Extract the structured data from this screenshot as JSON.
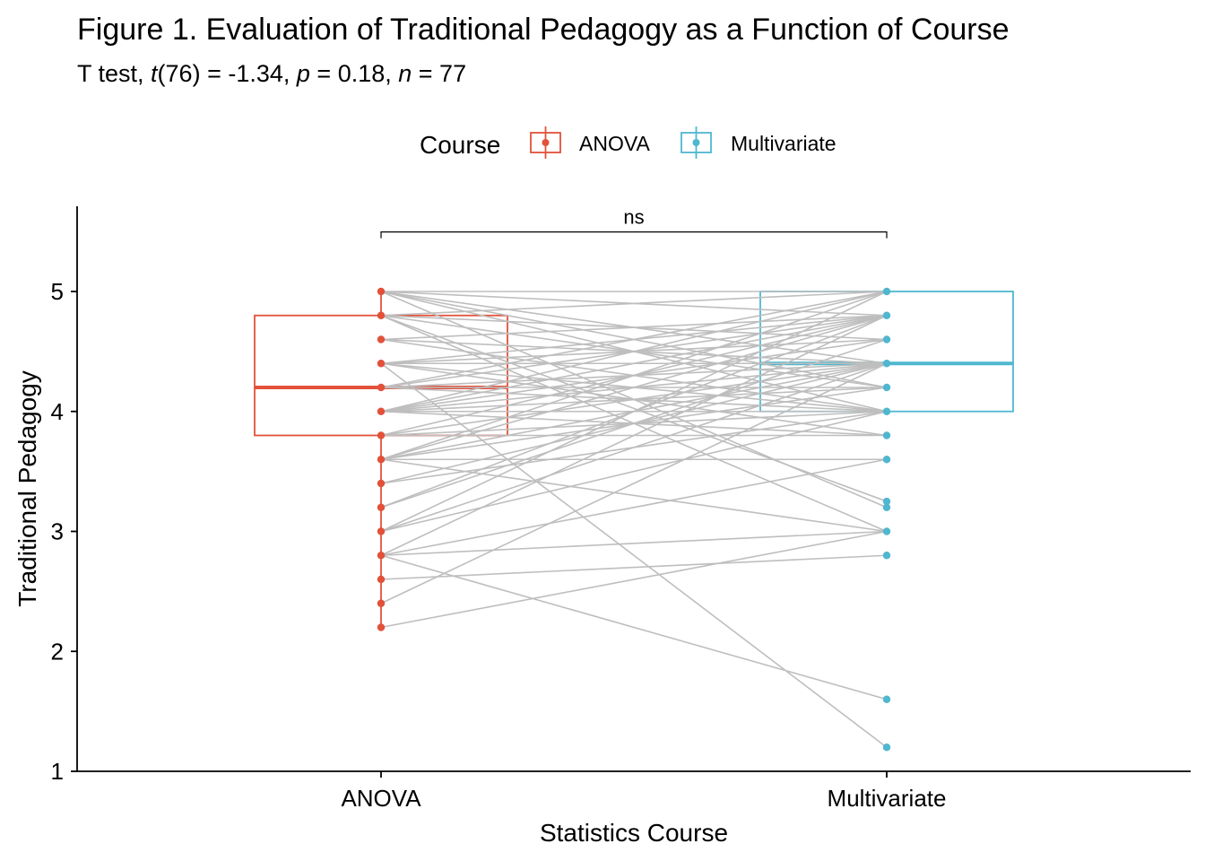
{
  "title": "Figure 1. Evaluation of Traditional Pedagogy as a Function of Course",
  "subtitle": {
    "prefix": "T test, ",
    "t_symbol": "t",
    "t_value": "(76) = -1.34, ",
    "p_symbol": "p",
    "p_value": " = 0.18, ",
    "n_symbol": "n",
    "n_value": " = 77"
  },
  "legend": {
    "title": "Course",
    "placement": "top",
    "items": [
      {
        "label": "ANOVA",
        "color": "#E2513A"
      },
      {
        "label": "Multivariate",
        "color": "#4FB7CF"
      }
    ]
  },
  "chart_data": {
    "type": "boxplot-paired",
    "xlabel": "Statistics Course",
    "ylabel": "Traditional Pedagogy",
    "ylim": [
      1,
      5.8
    ],
    "y_ticks": [
      1,
      2,
      3,
      4,
      5
    ],
    "y_tick_labels": [
      "1",
      "2",
      "3",
      "4",
      "5"
    ],
    "categories": [
      "ANOVA",
      "Multivariate"
    ],
    "grid": false,
    "colors": {
      "ANOVA": "#E2513A",
      "Multivariate": "#4FB7CF",
      "paired_line": "#BEBEBE"
    },
    "boxes": [
      {
        "group": "ANOVA",
        "min": 2.2,
        "q1": 3.8,
        "median": 4.2,
        "q3": 4.8,
        "max": 5.0
      },
      {
        "group": "Multivariate",
        "min": 4.0,
        "q1": 4.0,
        "median": 4.4,
        "q3": 5.0,
        "max": 5.0
      }
    ],
    "points": {
      "ANOVA": [
        2.2,
        2.4,
        2.6,
        2.8,
        3.0,
        3.2,
        3.4,
        3.6,
        3.8,
        4.0,
        4.2,
        4.4,
        4.6,
        4.8,
        5.0
      ],
      "Multivariate": [
        1.2,
        1.6,
        2.8,
        3.0,
        3.2,
        3.25,
        3.6,
        3.8,
        4.0,
        4.2,
        4.4,
        4.6,
        4.8,
        5.0
      ]
    },
    "paired_lines": [
      [
        5.0,
        5.0
      ],
      [
        5.0,
        4.8
      ],
      [
        5.0,
        4.4
      ],
      [
        5.0,
        4.2
      ],
      [
        5.0,
        3.2
      ],
      [
        5.0,
        4.0
      ],
      [
        4.8,
        5.0
      ],
      [
        4.8,
        4.6
      ],
      [
        4.8,
        4.2
      ],
      [
        4.8,
        3.0
      ],
      [
        4.8,
        3.25
      ],
      [
        4.6,
        4.8
      ],
      [
        4.6,
        4.4
      ],
      [
        4.6,
        4.0
      ],
      [
        4.4,
        4.6
      ],
      [
        4.4,
        4.8
      ],
      [
        4.4,
        4.0
      ],
      [
        4.4,
        4.4
      ],
      [
        4.4,
        3.8
      ],
      [
        4.4,
        1.2
      ],
      [
        4.2,
        4.8
      ],
      [
        4.2,
        4.2
      ],
      [
        4.2,
        4.0
      ],
      [
        4.2,
        4.4
      ],
      [
        4.2,
        5.0
      ],
      [
        4.0,
        4.0
      ],
      [
        4.0,
        4.8
      ],
      [
        4.0,
        4.4
      ],
      [
        4.0,
        3.8
      ],
      [
        4.0,
        4.6
      ],
      [
        4.0,
        5.0
      ],
      [
        4.0,
        4.2
      ],
      [
        3.8,
        4.4
      ],
      [
        3.8,
        4.0
      ],
      [
        3.8,
        3.8
      ],
      [
        3.8,
        4.8
      ],
      [
        3.6,
        3.6
      ],
      [
        3.6,
        4.4
      ],
      [
        3.6,
        4.8
      ],
      [
        3.6,
        3.0
      ],
      [
        3.6,
        5.0
      ],
      [
        3.6,
        4.2
      ],
      [
        3.4,
        4.4
      ],
      [
        3.4,
        4.0
      ],
      [
        3.2,
        4.8
      ],
      [
        3.2,
        4.6
      ],
      [
        3.0,
        4.4
      ],
      [
        3.0,
        5.0
      ],
      [
        3.0,
        4.0
      ],
      [
        2.8,
        4.8
      ],
      [
        2.8,
        1.6
      ],
      [
        2.8,
        3.6
      ],
      [
        2.8,
        3.0
      ],
      [
        2.6,
        2.8
      ],
      [
        2.4,
        4.4
      ],
      [
        2.2,
        3.0
      ]
    ],
    "comparison": {
      "group1": "ANOVA",
      "group2": "Multivariate",
      "y": 5.5,
      "label": "ns"
    }
  }
}
